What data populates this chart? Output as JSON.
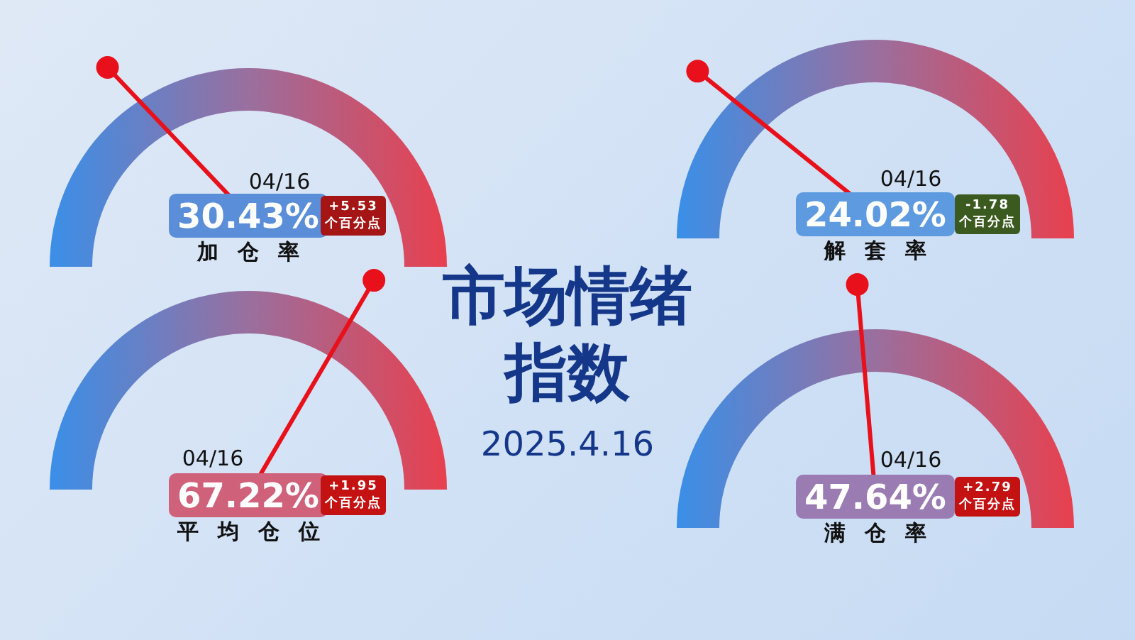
{
  "chart_data": [
    {
      "type": "other",
      "title": "加仓率",
      "values": [
        30.43
      ],
      "value_labels": [
        "30.43%"
      ],
      "annotations": [
        "04/16",
        "+5.53\n个百分点"
      ],
      "colors": [
        "#5b8ed8"
      ]
    },
    {
      "type": "other",
      "title": "解套率",
      "values": [
        24.02
      ],
      "value_labels": [
        "24.02%"
      ],
      "annotations": [
        "04/16",
        "-1.78\n个百分点"
      ],
      "colors": [
        "#5d9ae0"
      ]
    },
    {
      "type": "other",
      "title": "市场情绪指数",
      "subtitle": "2025.4.16"
    },
    {
      "type": "other",
      "title": "平均仓位",
      "values": [
        67.22
      ],
      "value_labels": [
        "67.22%"
      ],
      "annotations": [
        "04/16",
        "+1.95\n个百分点"
      ],
      "colors": [
        "#d0617a"
      ]
    },
    {
      "type": "other",
      "title": "满仓率",
      "values": [
        47.64
      ],
      "value_labels": [
        "47.64%"
      ],
      "annotations": [
        "04/16",
        "+2.79\n个百分点"
      ],
      "colors": [
        "#9a7bb2"
      ]
    }
  ]
}
